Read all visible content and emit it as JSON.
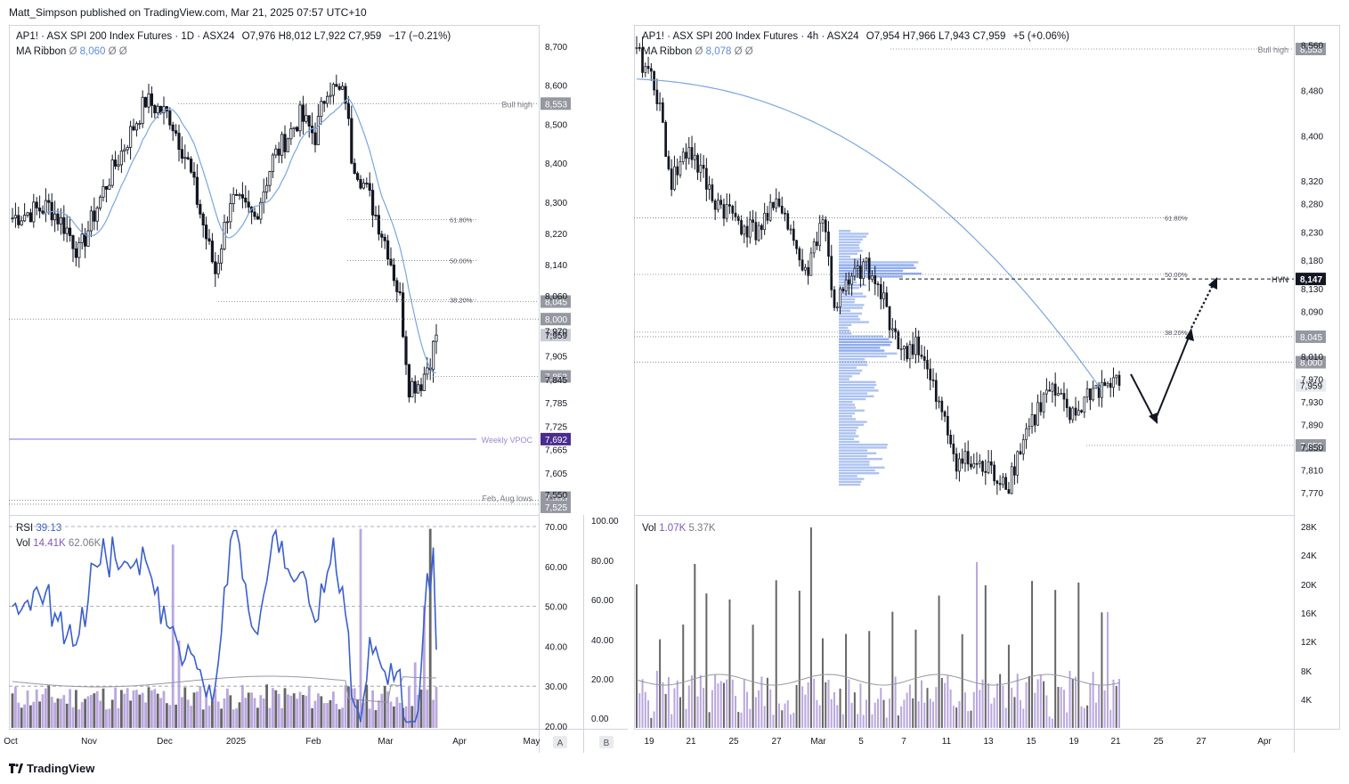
{
  "publisher": "Matt_Simpson published on TradingView.com, Mar 21, 2025 07:57 UTC+10",
  "footer": {
    "brand": "TradingView"
  },
  "colors": {
    "ma": "#7aa6e0",
    "vol_purple": "#b39ddb",
    "vol_grey": "#555555",
    "rsi": "#3a5fcd",
    "vpoc": "#b7a6e3",
    "profile": "#9db7f0"
  },
  "chart_data": [
    {
      "type": "candlestick",
      "panel": "left",
      "title": "AP1! · ASX SPI 200 Index Futures · 1D · ASX24",
      "ohlc_text": "O7,976  H8,012  L7,922  C7,959",
      "change_text": "−17 (−0.21%)",
      "indicator": {
        "name": "MA Ribbon",
        "symbol": "Ø",
        "value": "8,060",
        "extra": "Ø  Ø"
      },
      "y_ticks": [
        "8,700",
        "8,600",
        "8,500",
        "8,400",
        "8,300",
        "8,220",
        "8,140",
        "8,060",
        "7,970",
        "7,905",
        "7,845",
        "7,785",
        "7,725",
        "7,665",
        "7,605",
        "7,550"
      ],
      "x_ticks": [
        "Oct",
        "Nov",
        "Dec",
        "2025",
        "Feb",
        "Mar",
        "Apr",
        "May"
      ],
      "price_labels": [
        {
          "text": "8,553",
          "note": "Bull high",
          "style": "grey"
        },
        {
          "text": "8,045",
          "style": "grey"
        },
        {
          "text": "8,000",
          "style": "grey"
        },
        {
          "text": "7,959",
          "style": "light"
        },
        {
          "text": "7,853",
          "style": "grey"
        },
        {
          "text": "7,692",
          "note": "Weekly VPOC",
          "style": "purple"
        },
        {
          "text": "7,535",
          "note": "Feb, Aug lows",
          "style": "grey"
        },
        {
          "text": "7,525",
          "style": "grey"
        }
      ],
      "fib_levels": [
        "61.80%",
        "50.00%",
        "38.20%"
      ],
      "axis_letter": "A",
      "data_summary": {
        "start": 8260,
        "peak": 8620,
        "low": 7780,
        "last_close": 7959
      }
    },
    {
      "type": "line_and_bar",
      "panel": "left-lower",
      "rsi": {
        "label": "RSI",
        "value": "39.13",
        "y_ticks": [
          "70.00",
          "60.00",
          "50.00",
          "40.00",
          "30.00",
          "20.00"
        ]
      },
      "volume": {
        "label": "Vol",
        "value": "14.41K",
        "ma": "62.06K"
      },
      "right_ticks": [
        "100.00",
        "80.00",
        "60.00",
        "40.00",
        "20.00",
        "0.00"
      ],
      "axis_letter": "B"
    },
    {
      "type": "candlestick",
      "panel": "right",
      "title": "AP1! · ASX SPI 200 Index Futures · 4h · ASX24",
      "ohlc_text": "O7,954  H7,966  L7,943  C7,959",
      "change_text": "+5 (+0.06%)",
      "indicator": {
        "name": "MA Ribbon",
        "symbol": "Ø",
        "value": "8,078",
        "extra": "Ø  Ø"
      },
      "y_ticks": [
        "8,560",
        "8,480",
        "8,400",
        "8,320",
        "8,280",
        "8,230",
        "8,180",
        "8,130",
        "8,090",
        "8,010",
        "7,970",
        "7,930",
        "7,890",
        "7,850",
        "7,810",
        "7,770"
      ],
      "x_ticks": [
        "19",
        "21",
        "25",
        "27",
        "Mar",
        "5",
        "7",
        "11",
        "13",
        "15",
        "19",
        "21",
        "25",
        "27",
        "Apr"
      ],
      "price_labels": [
        {
          "text": "8,553",
          "note": "Bull high",
          "style": "grey"
        },
        {
          "text": "8,147",
          "note": "HVN",
          "style": "dark"
        },
        {
          "text": "8,045",
          "style": "grey"
        },
        {
          "text": "8,000",
          "style": "grey"
        },
        {
          "text": "7,959",
          "style": "light"
        },
        {
          "text": "7,853",
          "style": "grey"
        }
      ],
      "fib_levels": [
        "61.80%",
        "50.00%",
        "38.20%"
      ],
      "data_summary": {
        "start": 8540,
        "low": 7775,
        "last_close": 7959
      }
    },
    {
      "type": "bar",
      "panel": "right-lower",
      "volume": {
        "label": "Vol",
        "value": "1.07K",
        "ma": "5.37K"
      },
      "y_ticks": [
        "28K",
        "24K",
        "20K",
        "16K",
        "12K",
        "8K",
        "4K"
      ]
    }
  ]
}
